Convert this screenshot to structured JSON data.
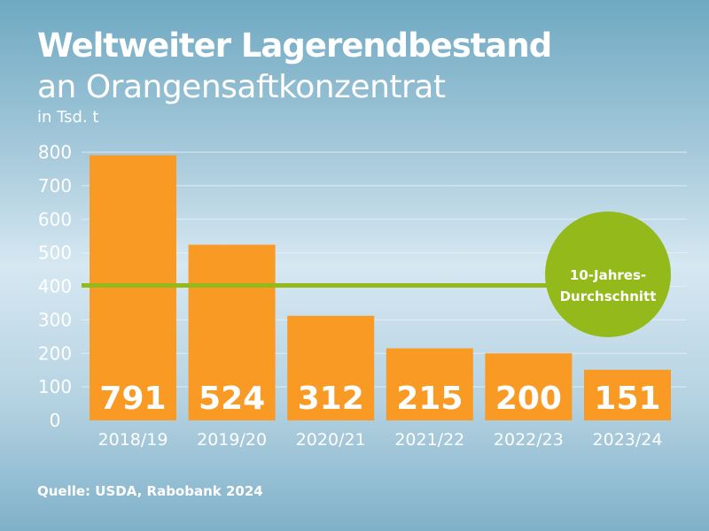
{
  "chart_data": {
    "type": "bar",
    "title": "Weltweiter Lagerendbestand",
    "subtitle": "an Orangensaftkonzentrat",
    "ylabel": "in Tsd. t",
    "categories": [
      "2018/19",
      "2019/20",
      "2020/21",
      "2021/22",
      "2022/23",
      "2023/24"
    ],
    "values": [
      791,
      524,
      312,
      215,
      200,
      151
    ],
    "ylim": [
      0,
      800
    ],
    "yticks": [
      0,
      100,
      200,
      300,
      400,
      500,
      600,
      700,
      800
    ],
    "grid": true,
    "reference_line": {
      "value": 400,
      "label_line1": "10-Jahres-",
      "label_line2": "Durchschnitt",
      "color": "#93b91a"
    },
    "bar_color": "#f99a25"
  },
  "source": "Quelle: USDA, Rabobank 2024"
}
